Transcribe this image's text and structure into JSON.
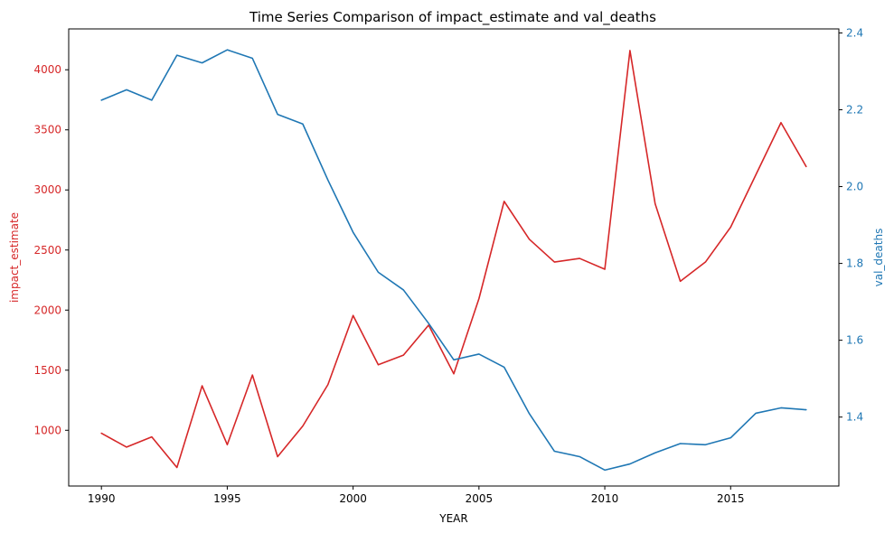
{
  "chart_data": {
    "type": "line",
    "title": "Time Series Comparison of impact_estimate and val_deaths",
    "xlabel": "YEAR",
    "ylabel_left": "impact_estimate",
    "ylabel_right": "val_deaths",
    "xlim": [
      1988.7,
      2019.3
    ],
    "ylim_left": [
      536,
      4340
    ],
    "ylim_right": [
      1.2205,
      2.4105
    ],
    "xticks": [
      1990,
      1995,
      2000,
      2005,
      2010,
      2015
    ],
    "yticks_left": [
      1000,
      1500,
      2000,
      2500,
      3000,
      3500,
      4000
    ],
    "yticks_right": [
      1.4,
      1.6,
      1.8,
      2.0,
      2.2,
      2.4
    ],
    "grid": false,
    "x": [
      1990,
      1991,
      1992,
      1993,
      1994,
      1995,
      1996,
      1997,
      1998,
      1999,
      2000,
      2001,
      2002,
      2003,
      2004,
      2005,
      2006,
      2007,
      2008,
      2009,
      2010,
      2011,
      2012,
      2013,
      2014,
      2015,
      2016,
      2017,
      2018
    ],
    "series": [
      {
        "name": "impact_estimate",
        "axis": "left",
        "color": "#d62728",
        "values": [
          975,
          860,
          945,
          690,
          1370,
          880,
          1460,
          780,
          1035,
          1380,
          1955,
          1545,
          1625,
          1875,
          1470,
          2095,
          2905,
          2590,
          2400,
          2430,
          2340,
          4160,
          2885,
          2240,
          2400,
          2690,
          3125,
          3560,
          3195
        ]
      },
      {
        "name": "val_deaths",
        "axis": "right",
        "color": "#1f77b4",
        "values": [
          2.225,
          2.252,
          2.225,
          2.342,
          2.322,
          2.356,
          2.334,
          2.188,
          2.163,
          2.017,
          1.881,
          1.777,
          1.731,
          1.644,
          1.549,
          1.564,
          1.53,
          1.409,
          1.311,
          1.297,
          1.262,
          1.278,
          1.307,
          1.331,
          1.328,
          1.346,
          1.41,
          1.424,
          1.419
        ]
      }
    ]
  }
}
